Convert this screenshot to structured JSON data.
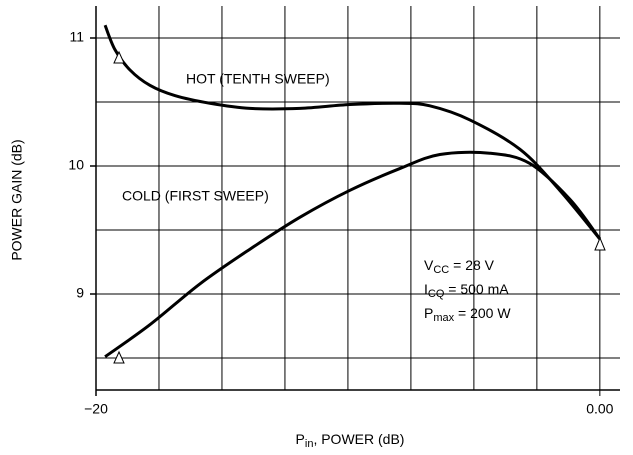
{
  "chart_data": {
    "type": "line",
    "ylabel": "POWER GAIN (dB)",
    "xlabel": {
      "main": "P",
      "sub": "in",
      "rest": ", POWER (dB)"
    },
    "xlim": [
      -20,
      0.8
    ],
    "ylim": [
      8.25,
      11.25
    ],
    "xticks": [
      {
        "value": -20,
        "label": "−20"
      },
      {
        "value": 0,
        "label": "0.00"
      }
    ],
    "minor_xticks": [
      -17.5,
      -15,
      -12.5,
      -10,
      -7.5,
      -5,
      -2.5
    ],
    "yticks": [
      9,
      10,
      11
    ],
    "minor_yticks": [
      8.5,
      9.5,
      10.5
    ],
    "grid": true,
    "series": [
      {
        "name": "HOT (TENTH SWEEP)",
        "color": "#000000",
        "x": [
          -19.64,
          -19.25,
          -18.65,
          -17.86,
          -16.87,
          -15.48,
          -13.89,
          -11.9,
          -9.92,
          -7.94,
          -6.75,
          -5.16,
          -3.17,
          -1.59,
          0
        ],
        "values": [
          11.1,
          10.91,
          10.75,
          10.63,
          10.55,
          10.49,
          10.45,
          10.45,
          10.48,
          10.49,
          10.47,
          10.36,
          10.13,
          9.81,
          9.43
        ]
      },
      {
        "name": "COLD (FIRST SWEEP)",
        "color": "#000000",
        "x": [
          -19.64,
          -17.86,
          -15.87,
          -13.89,
          -11.9,
          -9.92,
          -7.94,
          -6.35,
          -4.37,
          -2.78,
          -1.19,
          0
        ],
        "values": [
          8.51,
          8.76,
          9.08,
          9.35,
          9.6,
          9.81,
          9.98,
          10.09,
          10.1,
          10.02,
          9.74,
          9.43
        ]
      }
    ],
    "conditions": [
      {
        "main": "V",
        "sub": "CC",
        "rest": " = 28 V"
      },
      {
        "main": "I",
        "sub": "CQ",
        "rest": " = 500 mA"
      },
      {
        "main": "P",
        "sub": "max",
        "rest": " = 200 W"
      }
    ]
  }
}
